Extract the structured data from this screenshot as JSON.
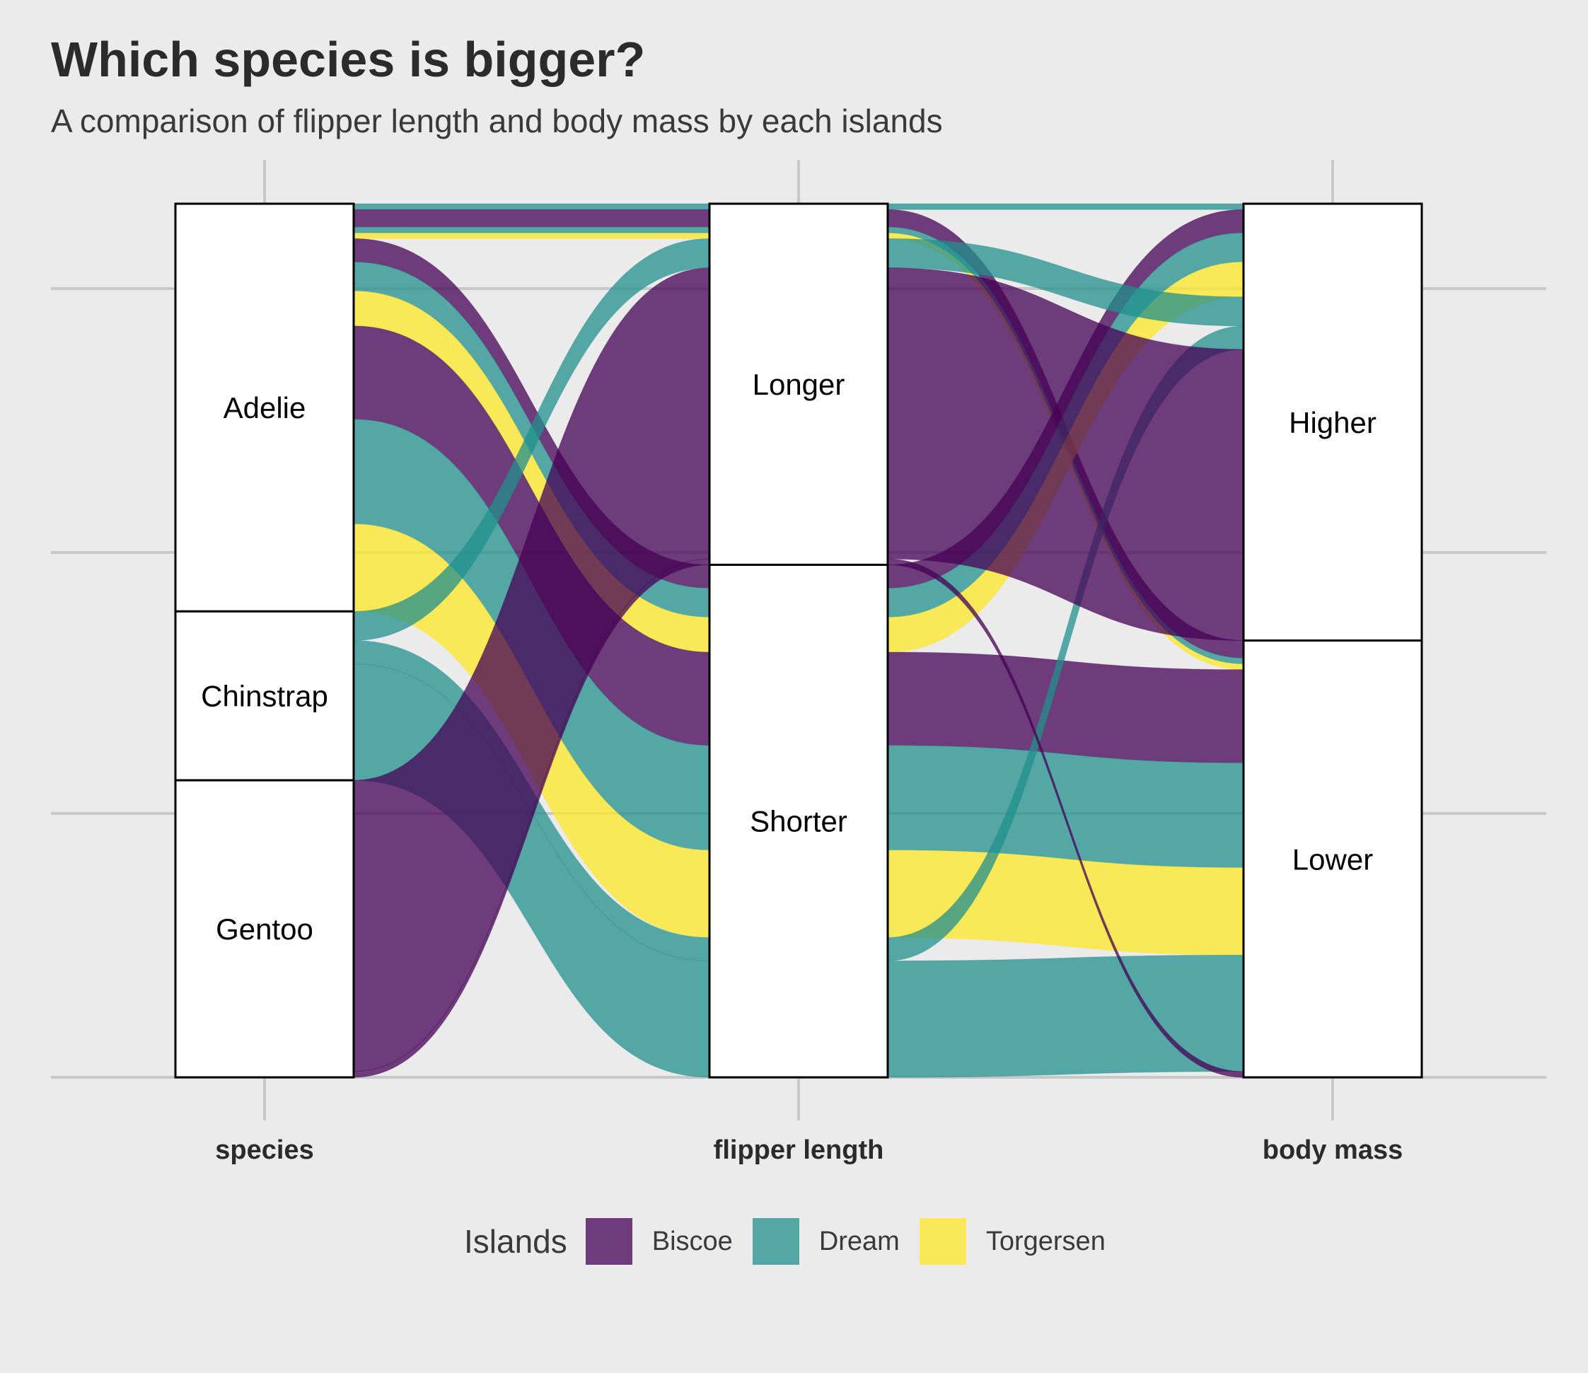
{
  "title": "Which species is bigger?",
  "subtitle": "A comparison of flipper length and body mass by each islands",
  "legend": {
    "title": "Islands",
    "items": [
      {
        "label": "Biscoe",
        "color": "#440154"
      },
      {
        "label": "Dream",
        "color": "#21908C"
      },
      {
        "label": "Torgersen",
        "color": "#FDE725"
      }
    ]
  },
  "chart_data": {
    "type": "alluvial",
    "axes": [
      {
        "label": "species",
        "strata": [
          "Adelie",
          "Chinstrap",
          "Gentoo"
        ]
      },
      {
        "label": "flipper length",
        "strata": [
          "Longer",
          "Shorter"
        ]
      },
      {
        "label": "body mass",
        "strata": [
          "Higher",
          "Lower"
        ]
      }
    ],
    "fill_by": "Islands",
    "flows": [
      {
        "island": "Dream",
        "species": "Adelie",
        "flipper": "Longer",
        "mass": "Higher",
        "count": 1
      },
      {
        "island": "Biscoe",
        "species": "Adelie",
        "flipper": "Longer",
        "mass": "Lower",
        "count": 3
      },
      {
        "island": "Torgersen",
        "species": "Adelie",
        "flipper": "Longer",
        "mass": "Lower",
        "count": 1
      },
      {
        "island": "Dream",
        "species": "Adelie",
        "flipper": "Longer",
        "mass": "Lower",
        "count": 1
      },
      {
        "island": "Biscoe",
        "species": "Adelie",
        "flipper": "Shorter",
        "mass": "Higher",
        "count": 4
      },
      {
        "island": "Dream",
        "species": "Adelie",
        "flipper": "Shorter",
        "mass": "Higher",
        "count": 5
      },
      {
        "island": "Torgersen",
        "species": "Adelie",
        "flipper": "Shorter",
        "mass": "Higher",
        "count": 6
      },
      {
        "island": "Biscoe",
        "species": "Adelie",
        "flipper": "Shorter",
        "mass": "Lower",
        "count": 16
      },
      {
        "island": "Dream",
        "species": "Adelie",
        "flipper": "Shorter",
        "mass": "Lower",
        "count": 18
      },
      {
        "island": "Torgersen",
        "species": "Adelie",
        "flipper": "Shorter",
        "mass": "Lower",
        "count": 15
      },
      {
        "island": "Dream",
        "species": "Chinstrap",
        "flipper": "Longer",
        "mass": "Higher",
        "count": 5
      },
      {
        "island": "Dream",
        "species": "Chinstrap",
        "flipper": "Shorter",
        "mass": "Higher",
        "count": 4
      },
      {
        "island": "Dream",
        "species": "Chinstrap",
        "flipper": "Shorter",
        "mass": "Lower",
        "count": 20
      },
      {
        "island": "Biscoe",
        "species": "Gentoo",
        "flipper": "Longer",
        "mass": "Higher",
        "count": 50
      },
      {
        "island": "Biscoe",
        "species": "Gentoo",
        "flipper": "Longer",
        "mass": "Lower",
        "count": 1
      }
    ],
    "grid": true
  }
}
